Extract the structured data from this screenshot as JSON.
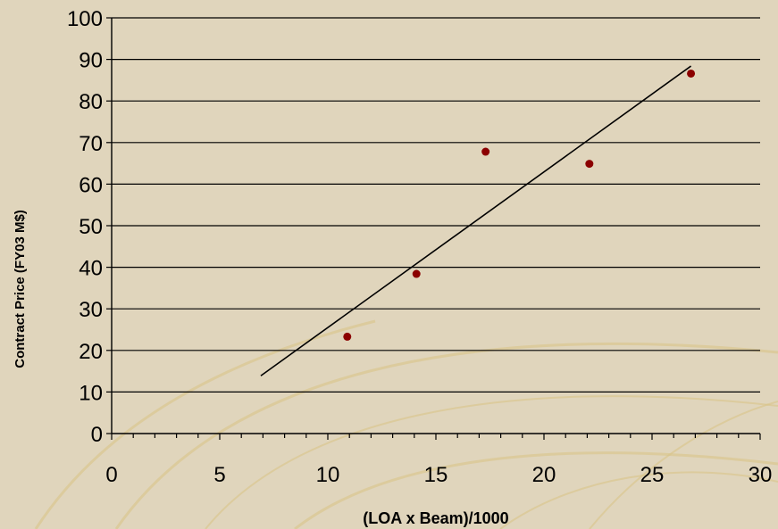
{
  "colors": {
    "background": "#e0d5bc",
    "decor_stroke": "#d9c489",
    "axis": "#000000",
    "gridline": "#000000",
    "point": "#8b0000",
    "trendline": "#000000"
  },
  "chart_data": {
    "type": "scatter",
    "xlabel": "(LOA x Beam)/1000",
    "ylabel": "Contract Price (FY03 M$)",
    "xlim": [
      0,
      30
    ],
    "ylim": [
      0,
      100
    ],
    "x_ticks": [
      "0",
      "5",
      "10",
      "15",
      "20",
      "25",
      "30"
    ],
    "y_ticks": [
      "0",
      "10",
      "20",
      "30",
      "40",
      "50",
      "60",
      "70",
      "80",
      "90",
      "100"
    ],
    "x_minor_step": 1,
    "grid": "horizontal major",
    "legend": "none",
    "series": [
      {
        "points": [
          {
            "x": 10.9,
            "y": 23.3
          },
          {
            "x": 14.1,
            "y": 38.4
          },
          {
            "x": 17.3,
            "y": 67.8
          },
          {
            "x": 22.1,
            "y": 64.9
          },
          {
            "x": 26.8,
            "y": 86.6
          }
        ]
      }
    ],
    "trendline": {
      "x": [
        6.9,
        26.8
      ],
      "y": [
        13.9,
        88.4
      ]
    }
  }
}
